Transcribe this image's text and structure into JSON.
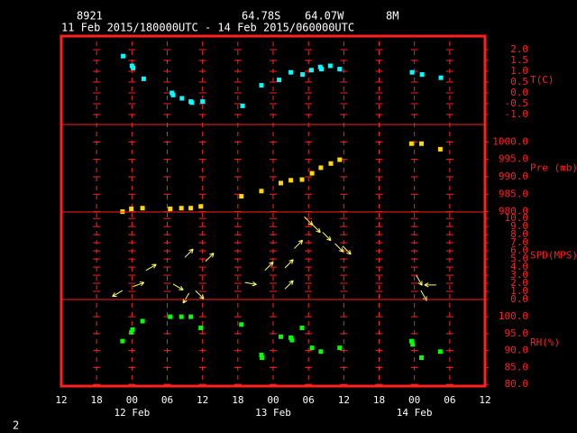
{
  "header": {
    "station": "8921",
    "latitude": "64.78S",
    "longitude": "64.07W",
    "elevation": "8M",
    "period": "11 Feb 2015/180000UTC - 14 Feb 2015/060000UTC",
    "page_number": "2"
  },
  "x_axis": {
    "xlim": [
      0,
      72
    ],
    "xticks": [
      {
        "value": 0,
        "label": "12"
      },
      {
        "value": 6,
        "label": "18"
      },
      {
        "value": 12,
        "label": "00"
      },
      {
        "value": 18,
        "label": "06"
      },
      {
        "value": 24,
        "label": "12"
      },
      {
        "value": 30,
        "label": "18"
      },
      {
        "value": 36,
        "label": "00"
      },
      {
        "value": 42,
        "label": "06"
      },
      {
        "value": 48,
        "label": "12"
      },
      {
        "value": 54,
        "label": "18"
      },
      {
        "value": 60,
        "label": "00"
      },
      {
        "value": 66,
        "label": "06"
      },
      {
        "value": 72,
        "label": "12"
      }
    ],
    "date_labels": [
      {
        "value": 12,
        "label": "12 Feb"
      },
      {
        "value": 36,
        "label": "13 Feb"
      },
      {
        "value": 60,
        "label": "14 Feb"
      }
    ]
  },
  "chart_data": [
    {
      "type": "scatter",
      "ylabel": "T(C)",
      "ylim": [
        -1.46,
        2.625
      ],
      "yticks": [
        {
          "value": 2,
          "label": "2.0"
        },
        {
          "value": 1.5,
          "label": "1.5"
        },
        {
          "value": 1,
          "label": "1.0"
        },
        {
          "value": 0.5,
          "label": "0.5"
        },
        {
          "value": 0,
          "label": "0.0"
        },
        {
          "value": -0.5,
          "label": "-0.5"
        },
        {
          "value": -1,
          "label": "-1.0"
        }
      ],
      "series": [
        {
          "color": "#00ffff",
          "x": [
            10.5,
            12,
            12.2,
            14,
            18.8,
            19,
            20.5,
            22,
            22.2,
            24,
            30.8,
            34,
            37,
            39,
            41,
            42.5,
            44,
            44.2,
            45.7,
            47.3,
            59.6,
            61.3,
            64.5
          ],
          "values": [
            1.7,
            1.25,
            1.15,
            0.65,
            0.0,
            -0.1,
            -0.25,
            -0.4,
            -0.45,
            -0.4,
            -0.6,
            0.35,
            0.6,
            0.95,
            0.85,
            1.05,
            1.2,
            1.1,
            1.25,
            1.1,
            0.95,
            0.85,
            0.7
          ]
        }
      ]
    },
    {
      "type": "scatter",
      "ylabel": "Pre (mb)",
      "ylim": [
        979.9,
        1005
      ],
      "yticks": [
        {
          "value": 1000,
          "label": "1000.0"
        },
        {
          "value": 995,
          "label": "995.0"
        },
        {
          "value": 990,
          "label": "990.0"
        },
        {
          "value": 985,
          "label": "985.0"
        },
        {
          "value": 980,
          "label": "980.0"
        }
      ],
      "series": [
        {
          "color": "#ffd800",
          "x": [
            10.4,
            11.9,
            13.8,
            18.5,
            20.4,
            22.0,
            23.7,
            30.6,
            34.0,
            37.3,
            39.0,
            40.9,
            42.6,
            44.1,
            45.8,
            47.3,
            59.5,
            61.2,
            64.4
          ],
          "values": [
            980.0,
            980.8,
            981.0,
            980.8,
            981.0,
            981.0,
            981.5,
            984.4,
            985.9,
            988.2,
            989.0,
            989.2,
            991.0,
            992.6,
            993.8,
            994.9,
            999.5,
            999.5,
            997.9
          ]
        }
      ]
    },
    {
      "type": "vector",
      "ylabel": "SPD(MPS)",
      "ylim": [
        0,
        10.8
      ],
      "yticks": [
        {
          "value": 10,
          "label": "10.0"
        },
        {
          "value": 9,
          "label": "9.0"
        },
        {
          "value": 8,
          "label": "8.0"
        },
        {
          "value": 7,
          "label": "7.0"
        },
        {
          "value": 6,
          "label": "6.0"
        },
        {
          "value": 5,
          "label": "5.0"
        },
        {
          "value": 4,
          "label": "4.0"
        },
        {
          "value": 3,
          "label": "3.0"
        },
        {
          "value": 2,
          "label": "2.0"
        },
        {
          "value": 1,
          "label": "1.0"
        },
        {
          "value": 0,
          "label": "0.0"
        }
      ],
      "series": [
        {
          "color": "#ffff66",
          "x": [
            10.4,
            12.2,
            14.4,
            19.0,
            21.0,
            21.7,
            22.8,
            24.5,
            31.2,
            34.6,
            38.0,
            38.0,
            39.6,
            41.3,
            42.6,
            44.4,
            46.5,
            47.8,
            60.3,
            61.1,
            63.7
          ],
          "values": [
            1.1,
            1.6,
            3.6,
            1.9,
            5.2,
            0.8,
            1.1,
            4.7,
            2.1,
            3.6,
            3.9,
            1.3,
            6.3,
            10.2,
            9.3,
            8.3,
            6.9,
            6.6,
            3.0,
            1.1,
            1.8
          ],
          "directions": [
            240,
            70,
            60,
            120,
            45,
            210,
            135,
            45,
            100,
            45,
            45,
            45,
            45,
            135,
            135,
            135,
            135,
            135,
            150,
            150,
            270
          ]
        }
      ]
    },
    {
      "type": "scatter",
      "ylabel": "RH(%)",
      "ylim": [
        79.5,
        105.1
      ],
      "yticks": [
        {
          "value": 100,
          "label": "100.0"
        },
        {
          "value": 95,
          "label": "95.0"
        },
        {
          "value": 90,
          "label": "90.0"
        },
        {
          "value": 85,
          "label": "85.0"
        },
        {
          "value": 80,
          "label": "80.0"
        }
      ],
      "series": [
        {
          "color": "#00ff00",
          "x": [
            10.4,
            11.9,
            12.1,
            13.8,
            18.5,
            20.4,
            22.0,
            23.7,
            30.6,
            34.0,
            34.1,
            37.3,
            39.0,
            39.2,
            40.9,
            42.6,
            44.1,
            47.3,
            59.5,
            59.7,
            61.2,
            64.4
          ],
          "values": [
            92.8,
            95.4,
            96.2,
            98.7,
            100,
            100,
            100,
            96.7,
            97.7,
            88.7,
            87.9,
            94.1,
            93.8,
            93.1,
            96.7,
            90.8,
            89.7,
            90.8,
            92.8,
            91.8,
            87.9,
            89.7
          ]
        }
      ]
    }
  ]
}
